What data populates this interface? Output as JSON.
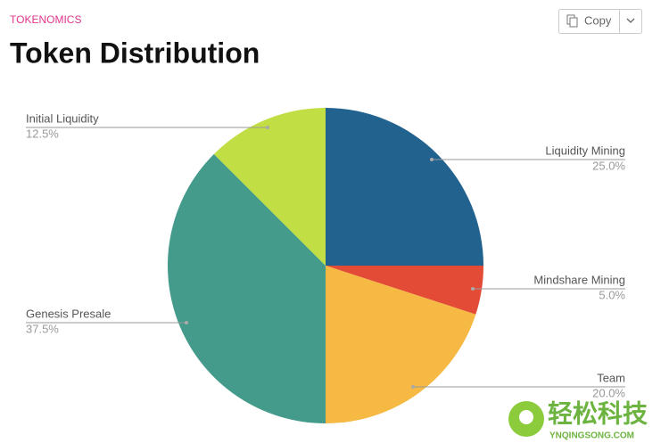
{
  "section_label": "TOKENOMICS",
  "copy_button": "Copy",
  "watermark": {
    "brand": "轻松科技",
    "site": "YNQINGSONG.COM"
  },
  "chart_data": {
    "type": "pie",
    "title": "Token Distribution",
    "categories": [
      "Liquidity Mining",
      "Mindshare Mining",
      "Team",
      "Genesis Presale",
      "Initial Liquidity"
    ],
    "values": [
      25,
      5,
      20,
      37.5,
      12.5
    ],
    "value_labels": [
      "25.0%",
      "5.0%",
      "20.0%",
      "37.5%",
      "12.5%"
    ],
    "colors": [
      "#21628f",
      "#e34b36",
      "#f5b944",
      "#449b8b",
      "#c1de44"
    ]
  }
}
